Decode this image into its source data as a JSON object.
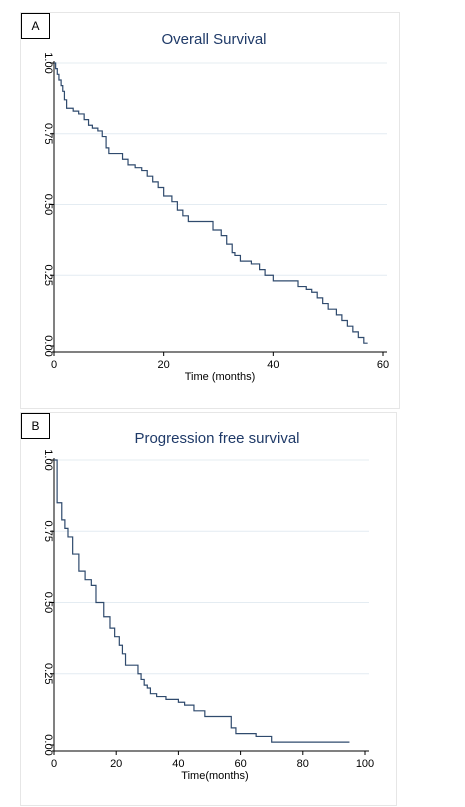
{
  "chart_data": [
    {
      "panel_label": "A",
      "type": "line",
      "step": true,
      "title": "Overall Survival",
      "xlabel": "Time (months)",
      "ylabel": "",
      "xlim": [
        0,
        60
      ],
      "ylim": [
        0,
        1
      ],
      "xticks": [
        "0",
        "20",
        "40",
        "60"
      ],
      "yticks": [
        "0.00",
        "0.25",
        "0.50",
        "0.75",
        "1.00"
      ],
      "grid": true,
      "line_color": "#2f4a6d",
      "title_color": "#1f3a68",
      "series": [
        {
          "x": [
            0,
            0.3,
            0.6,
            0.9,
            1.3,
            1.6,
            1.9,
            2.3,
            3.5,
            4.5,
            5.5,
            6.3,
            7.0,
            8.0,
            8.8,
            9.5,
            10.0,
            11.0,
            12.5,
            13.5,
            14.8,
            16.0,
            17.0,
            18.0,
            19.0,
            20.0,
            21.5,
            22.5,
            23.5,
            24.5,
            26.0,
            27.0,
            29.0,
            30.5,
            31.5,
            32.5,
            33.0,
            34.0,
            36.0,
            37.5,
            38.5,
            40.0,
            44.5,
            46.0,
            47.0,
            48.0,
            49.0,
            50.0,
            51.5,
            52.5,
            53.5,
            54.5,
            55.5,
            56.5,
            57.2
          ],
          "y": [
            1.0,
            0.98,
            0.96,
            0.94,
            0.92,
            0.9,
            0.87,
            0.84,
            0.83,
            0.82,
            0.8,
            0.78,
            0.77,
            0.76,
            0.74,
            0.7,
            0.68,
            0.68,
            0.66,
            0.64,
            0.63,
            0.62,
            0.6,
            0.58,
            0.56,
            0.53,
            0.51,
            0.48,
            0.46,
            0.44,
            0.44,
            0.44,
            0.41,
            0.39,
            0.36,
            0.33,
            0.32,
            0.3,
            0.29,
            0.27,
            0.25,
            0.23,
            0.21,
            0.2,
            0.19,
            0.17,
            0.15,
            0.13,
            0.11,
            0.09,
            0.07,
            0.05,
            0.03,
            0.01,
            0.01
          ]
        }
      ]
    },
    {
      "panel_label": "B",
      "type": "line",
      "step": true,
      "title": "Progression free survival",
      "xlabel": "Time(months)",
      "ylabel": "",
      "xlim": [
        0,
        100
      ],
      "ylim": [
        0,
        1
      ],
      "xticks": [
        "0",
        "20",
        "40",
        "60",
        "80",
        "100"
      ],
      "yticks": [
        "0.00",
        "0.25",
        "0.50",
        "0.75",
        "1.00"
      ],
      "grid": true,
      "line_color": "#2f4a6d",
      "title_color": "#1f3a68",
      "series": [
        {
          "x": [
            0,
            1.0,
            2.5,
            3.5,
            4.5,
            6.0,
            8.0,
            10.0,
            12.0,
            13.5,
            16.0,
            18.0,
            19.5,
            21.0,
            22.0,
            23.0,
            25.0,
            27.0,
            28.0,
            29.0,
            30.0,
            31.0,
            33.0,
            36.0,
            40.0,
            42.0,
            45.0,
            48.5,
            50.5,
            57.0,
            58.5,
            60.0,
            65.0,
            70.0,
            80.0,
            88.0,
            95.0
          ],
          "y": [
            1.0,
            0.85,
            0.79,
            0.76,
            0.73,
            0.67,
            0.61,
            0.58,
            0.56,
            0.5,
            0.45,
            0.41,
            0.38,
            0.35,
            0.32,
            0.28,
            0.28,
            0.25,
            0.23,
            0.21,
            0.2,
            0.18,
            0.17,
            0.16,
            0.15,
            0.14,
            0.12,
            0.1,
            0.1,
            0.06,
            0.04,
            0.04,
            0.03,
            0.01,
            0.01,
            0.01,
            0.01
          ]
        }
      ]
    }
  ]
}
